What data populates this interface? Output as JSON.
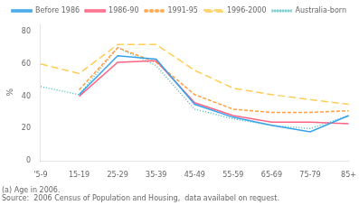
{
  "chart_data": {
    "type": "line",
    "categories": [
      "'5-9",
      "15-19",
      "25-29",
      "35-39",
      "45-49",
      "55-59",
      "65-69",
      "75-79",
      "85+"
    ],
    "series": [
      {
        "name": "Before 1986",
        "values": [
          null,
          41,
          65,
          63,
          35,
          27,
          22,
          18,
          28
        ],
        "line_style": "solid"
      },
      {
        "name": "1986-90",
        "values": [
          null,
          40,
          61,
          62,
          36,
          28,
          24,
          24,
          23
        ],
        "line_style": "solid"
      },
      {
        "name": "1991-95",
        "values": [
          null,
          44,
          70,
          61,
          41,
          32,
          30,
          30,
          31
        ],
        "line_style": "dashed"
      },
      {
        "name": "1996-2000",
        "values": [
          60,
          54,
          72,
          72,
          56,
          45,
          41,
          38,
          35
        ],
        "line_style": "long-dashed"
      },
      {
        "name": "Australia-born",
        "values": [
          46,
          41,
          70,
          59,
          32,
          26,
          22,
          20,
          28
        ],
        "line_style": "dotted"
      }
    ],
    "y_label": "%",
    "ylim": [
      0,
      85
    ],
    "yticks": [
      0,
      20,
      40,
      60,
      80
    ],
    "grid": false,
    "legend": "upper right",
    "annotations": [
      "(a) Age in 2006.",
      "Source:  2006 Census of Population and Housing,  data availabel on request."
    ]
  }
}
